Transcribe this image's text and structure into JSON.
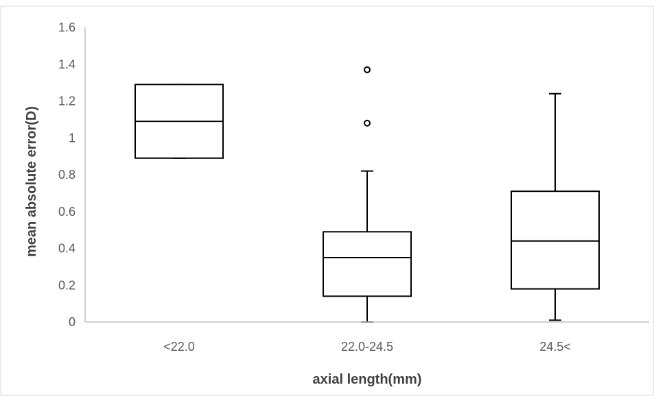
{
  "chart_data": {
    "type": "boxplot",
    "title": "",
    "xlabel": "axial length(mm)",
    "ylabel": "mean absolute error(D)",
    "ylim": [
      0,
      1.6
    ],
    "yticks": [
      "0",
      "0.2",
      "0.4",
      "0.6",
      "0.8",
      "1",
      "1.2",
      "1.4",
      "1.6"
    ],
    "categories": [
      "<22.0",
      "22.0-24.5",
      "24.5<"
    ],
    "boxes": [
      {
        "category": "<22.0",
        "whisker_low": 0.89,
        "q1": 0.89,
        "median": 1.09,
        "q3": 1.29,
        "whisker_high": 1.29,
        "outliers": []
      },
      {
        "category": "22.0-24.5",
        "whisker_low": 0.0,
        "q1": 0.14,
        "median": 0.35,
        "q3": 0.49,
        "whisker_high": 0.82,
        "outliers": [
          1.08,
          1.37
        ]
      },
      {
        "category": "24.5<",
        "whisker_low": 0.01,
        "q1": 0.18,
        "median": 0.44,
        "q3": 0.71,
        "whisker_high": 1.24,
        "outliers": []
      }
    ],
    "grid": false,
    "border_color": "#d9d9d9",
    "box_color": "#000000",
    "axis_color": "#bfbfbf"
  }
}
